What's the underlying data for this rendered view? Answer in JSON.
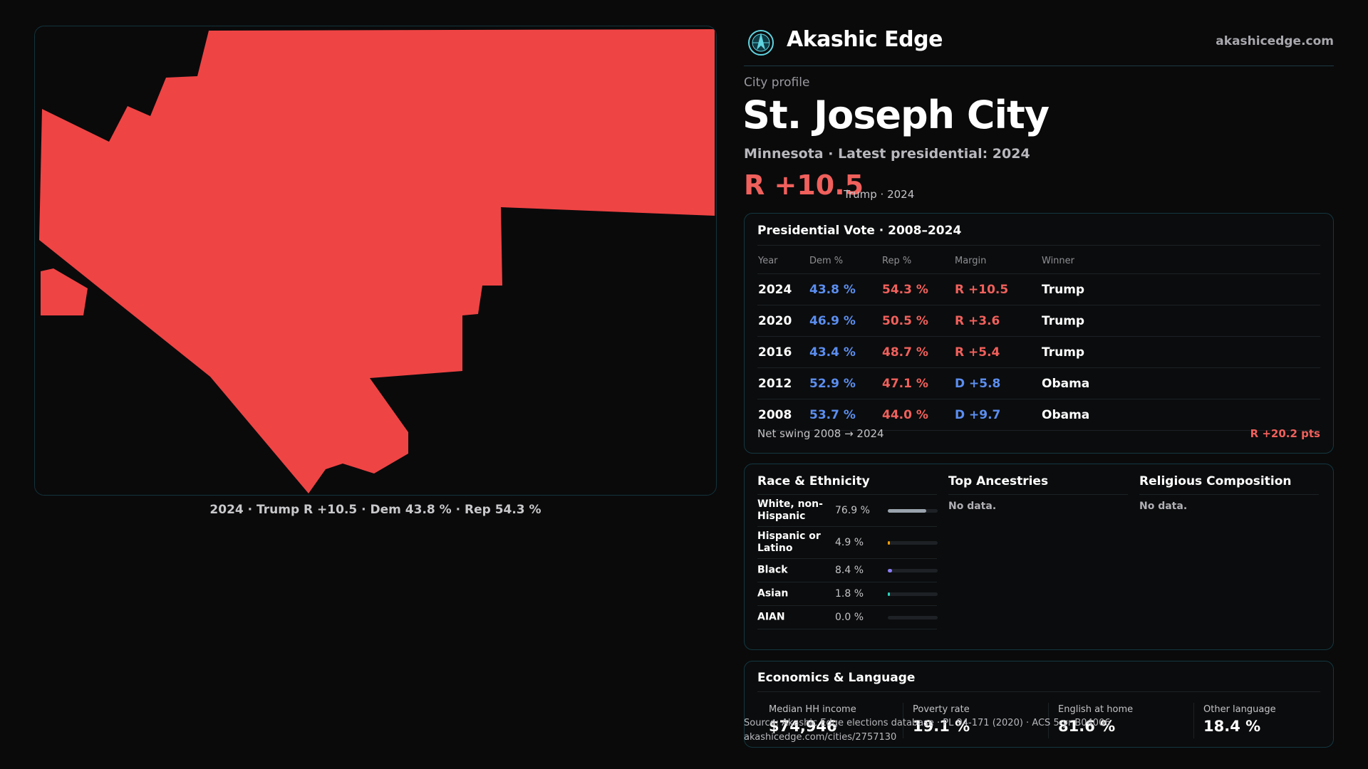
{
  "map": {
    "caption": "2024 · Trump R +10.5 · Dem 43.8 % · Rep 54.3 %",
    "fill_color": "#ef4444"
  },
  "header": {
    "logo_icon": "compass-globe-icon",
    "brand": "Akashic Edge",
    "domain": "akashicedge.com"
  },
  "profile": {
    "eyebrow": "City profile",
    "city_name": "St. Joseph City",
    "subtitle": "Minnesota · Latest presidential: 2024",
    "margin": "R +10.5",
    "margin_note": "Trump · 2024"
  },
  "presidential": {
    "title": "Presidential Vote · 2008–2024",
    "columns": [
      "Year",
      "Dem %",
      "Rep %",
      "Margin",
      "Winner"
    ],
    "rows": [
      {
        "year": "2024",
        "dem": "43.8 %",
        "rep": "54.3 %",
        "margin": "R +10.5",
        "winner": "Trump"
      },
      {
        "year": "2020",
        "dem": "46.9 %",
        "rep": "50.5 %",
        "margin": "R +3.6",
        "winner": "Trump"
      },
      {
        "year": "2016",
        "dem": "43.4 %",
        "rep": "48.7 %",
        "margin": "R +5.4",
        "winner": "Trump"
      },
      {
        "year": "2012",
        "dem": "52.9 %",
        "rep": "47.1 %",
        "margin": "D +5.8",
        "winner": "Obama"
      },
      {
        "year": "2008",
        "dem": "53.7 %",
        "rep": "44.0 %",
        "margin": "D +9.7",
        "winner": "Obama"
      }
    ],
    "swing_label": "Net swing 2008 → 2024",
    "swing_value": "R +20.2 pts"
  },
  "race": {
    "title": "Race & Ethnicity",
    "rows": [
      {
        "label": "White, non-Hispanic",
        "pct": "76.9 %",
        "value": 76.9,
        "color": "#9aa3ad"
      },
      {
        "label": "Hispanic or Latino",
        "pct": "4.9 %",
        "value": 4.9,
        "color": "#f59e0b"
      },
      {
        "label": "Black",
        "pct": "8.4 %",
        "value": 8.4,
        "color": "#8b7cf6"
      },
      {
        "label": "Asian",
        "pct": "1.8 %",
        "value": 1.8,
        "color": "#2dd4bf"
      },
      {
        "label": "AIAN",
        "pct": "0.0 %",
        "value": 0.0,
        "color": "#d4a373"
      }
    ]
  },
  "ancestries": {
    "title": "Top Ancestries",
    "empty": "No data."
  },
  "religion": {
    "title": "Religious Composition",
    "empty": "No data."
  },
  "economics": {
    "title": "Economics & Language",
    "stats": [
      {
        "label": "Median HH income",
        "value": "$74,946"
      },
      {
        "label": "Poverty rate",
        "value": "19.1 %"
      },
      {
        "label": "English at home",
        "value": "81.6 %"
      },
      {
        "label": "Other language",
        "value": "18.4 %"
      }
    ]
  },
  "footer": {
    "source": "Source: Akashic Edge elections database · PL 94-171 (2020) · ACS 5-yr B04006",
    "url": "akashicedge.com/cities/2757130"
  }
}
